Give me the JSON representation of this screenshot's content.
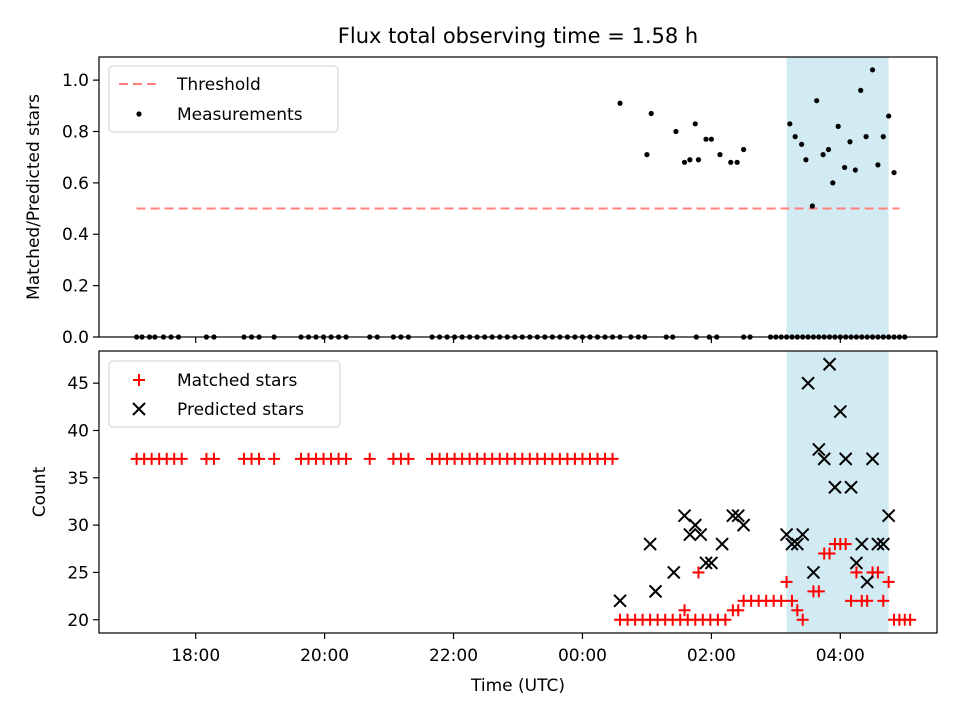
{
  "chart_data": [
    {
      "type": "scatter",
      "title": "Flux total observing time = 1.58 h",
      "ylabel": "Matched/Predicted stars",
      "xlim": [
        "16:30",
        "05:30"
      ],
      "ylim": [
        0,
        1.09
      ],
      "yticks": [
        "0.0",
        "0.2",
        "0.4",
        "0.6",
        "0.8",
        "1.0"
      ],
      "legend": {
        "placement": "top-left",
        "threshold": "Threshold",
        "measurements": "Measurements"
      },
      "colors": {
        "threshold": "#ff7f7f",
        "measurements": "#000000",
        "band": "#add8e6"
      },
      "highlight_band": [
        "03:10",
        "04:45"
      ],
      "threshold": {
        "value": 0.5,
        "x": [
          "17:05",
          "04:55"
        ]
      },
      "series": [
        {
          "points": [
            [
              "17:05",
              0
            ],
            [
              "17:10",
              0
            ],
            [
              "17:17",
              0
            ],
            [
              "17:22",
              0
            ],
            [
              "17:30",
              0
            ],
            [
              "17:37",
              0
            ],
            [
              "17:44",
              0
            ],
            [
              "18:10",
              0
            ],
            [
              "18:17",
              0
            ],
            [
              "18:45",
              0
            ],
            [
              "18:52",
              0
            ],
            [
              "18:59",
              0
            ],
            [
              "19:13",
              0
            ],
            [
              "19:38",
              0
            ],
            [
              "19:45",
              0
            ],
            [
              "19:52",
              0
            ],
            [
              "19:59",
              0
            ],
            [
              "20:06",
              0
            ],
            [
              "20:13",
              0
            ],
            [
              "20:20",
              0
            ],
            [
              "20:42",
              0
            ],
            [
              "20:49",
              0
            ],
            [
              "21:04",
              0
            ],
            [
              "21:11",
              0
            ],
            [
              "21:18",
              0
            ],
            [
              "21:40",
              0
            ],
            [
              "21:47",
              0
            ],
            [
              "21:54",
              0
            ],
            [
              "22:01",
              0
            ],
            [
              "22:08",
              0
            ],
            [
              "22:15",
              0
            ],
            [
              "22:22",
              0
            ],
            [
              "22:29",
              0
            ],
            [
              "22:36",
              0
            ],
            [
              "22:43",
              0
            ],
            [
              "22:50",
              0
            ],
            [
              "22:57",
              0
            ],
            [
              "23:04",
              0
            ],
            [
              "23:11",
              0
            ],
            [
              "23:18",
              0
            ],
            [
              "23:25",
              0
            ],
            [
              "23:32",
              0
            ],
            [
              "23:39",
              0
            ],
            [
              "23:46",
              0
            ],
            [
              "23:53",
              0
            ],
            [
              "00:00",
              0
            ],
            [
              "00:07",
              0
            ],
            [
              "00:14",
              0
            ],
            [
              "00:21",
              0
            ],
            [
              "00:28",
              0
            ],
            [
              "00:35",
              0
            ],
            [
              "00:45",
              0
            ],
            [
              "00:52",
              0
            ],
            [
              "00:58",
              0
            ],
            [
              "01:18",
              0
            ],
            [
              "01:24",
              0
            ],
            [
              "01:46",
              0
            ],
            [
              "01:58",
              0
            ],
            [
              "02:05",
              0
            ],
            [
              "02:30",
              0
            ],
            [
              "02:36",
              0
            ],
            [
              "02:55",
              0
            ],
            [
              "03:00",
              0
            ],
            [
              "03:05",
              0
            ],
            [
              "03:10",
              0
            ],
            [
              "03:15",
              0
            ],
            [
              "03:20",
              0
            ],
            [
              "03:25",
              0
            ],
            [
              "03:30",
              0
            ],
            [
              "03:35",
              0
            ],
            [
              "03:40",
              0
            ],
            [
              "03:45",
              0
            ],
            [
              "03:50",
              0
            ],
            [
              "03:55",
              0
            ],
            [
              "04:00",
              0
            ],
            [
              "04:05",
              0
            ],
            [
              "04:10",
              0
            ],
            [
              "04:15",
              0
            ],
            [
              "04:20",
              0
            ],
            [
              "04:25",
              0
            ],
            [
              "04:30",
              0
            ],
            [
              "04:35",
              0
            ],
            [
              "04:40",
              0
            ],
            [
              "04:45",
              0
            ],
            [
              "04:50",
              0
            ],
            [
              "04:55",
              0
            ],
            [
              "05:00",
              0
            ],
            [
              "00:35",
              0.91
            ],
            [
              "01:00",
              0.71
            ],
            [
              "01:04",
              0.87
            ],
            [
              "01:27",
              0.8
            ],
            [
              "01:35",
              0.68
            ],
            [
              "01:40",
              0.69
            ],
            [
              "01:45",
              0.83
            ],
            [
              "01:48",
              0.69
            ],
            [
              "01:55",
              0.77
            ],
            [
              "02:00",
              0.77
            ],
            [
              "02:08",
              0.71
            ],
            [
              "02:18",
              0.68
            ],
            [
              "02:24",
              0.68
            ],
            [
              "02:30",
              0.73
            ],
            [
              "03:13",
              0.83
            ],
            [
              "03:18",
              0.78
            ],
            [
              "03:24",
              0.75
            ],
            [
              "03:28",
              0.69
            ],
            [
              "03:34",
              0.51
            ],
            [
              "03:38",
              0.92
            ],
            [
              "03:44",
              0.71
            ],
            [
              "03:49",
              0.73
            ],
            [
              "03:53",
              0.6
            ],
            [
              "03:58",
              0.82
            ],
            [
              "04:04",
              0.66
            ],
            [
              "04:09",
              0.76
            ],
            [
              "04:14",
              0.65
            ],
            [
              "04:19",
              0.96
            ],
            [
              "04:24",
              0.78
            ],
            [
              "04:30",
              1.04
            ],
            [
              "04:35",
              0.67
            ],
            [
              "04:40",
              0.78
            ],
            [
              "04:45",
              0.86
            ],
            [
              "04:50",
              0.64
            ]
          ]
        }
      ]
    },
    {
      "type": "scatter",
      "xlabel": "Time (UTC)",
      "ylabel": "Count",
      "xlim": [
        "16:30",
        "05:30"
      ],
      "ylim": [
        18.6,
        48.4
      ],
      "xticks": [
        "18:00",
        "20:00",
        "22:00",
        "00:00",
        "02:00",
        "04:00"
      ],
      "yticks": [
        "20",
        "25",
        "30",
        "35",
        "40",
        "45"
      ],
      "legend": {
        "placement": "top-left",
        "matched": "Matched stars",
        "predicted": "Predicted stars"
      },
      "colors": {
        "matched": "#ff0000",
        "predicted": "#000000",
        "band": "#add8e6"
      },
      "highlight_band": [
        "03:10",
        "04:45"
      ],
      "matched_points": [
        [
          "17:05",
          37
        ],
        [
          "17:12",
          37
        ],
        [
          "17:19",
          37
        ],
        [
          "17:26",
          37
        ],
        [
          "17:33",
          37
        ],
        [
          "17:40",
          37
        ],
        [
          "17:47",
          37
        ],
        [
          "18:10",
          37
        ],
        [
          "18:17",
          37
        ],
        [
          "18:45",
          37
        ],
        [
          "18:52",
          37
        ],
        [
          "18:59",
          37
        ],
        [
          "19:13",
          37
        ],
        [
          "19:38",
          37
        ],
        [
          "19:45",
          37
        ],
        [
          "19:52",
          37
        ],
        [
          "19:59",
          37
        ],
        [
          "20:06",
          37
        ],
        [
          "20:13",
          37
        ],
        [
          "20:20",
          37
        ],
        [
          "20:42",
          37
        ],
        [
          "21:04",
          37
        ],
        [
          "21:11",
          37
        ],
        [
          "21:18",
          37
        ],
        [
          "21:40",
          37
        ],
        [
          "21:47",
          37
        ],
        [
          "21:54",
          37
        ],
        [
          "22:01",
          37
        ],
        [
          "22:08",
          37
        ],
        [
          "22:15",
          37
        ],
        [
          "22:22",
          37
        ],
        [
          "22:29",
          37
        ],
        [
          "22:36",
          37
        ],
        [
          "22:43",
          37
        ],
        [
          "22:50",
          37
        ],
        [
          "22:57",
          37
        ],
        [
          "23:04",
          37
        ],
        [
          "23:11",
          37
        ],
        [
          "23:18",
          37
        ],
        [
          "23:25",
          37
        ],
        [
          "23:32",
          37
        ],
        [
          "23:39",
          37
        ],
        [
          "23:46",
          37
        ],
        [
          "23:53",
          37
        ],
        [
          "00:00",
          37
        ],
        [
          "00:07",
          37
        ],
        [
          "00:14",
          37
        ],
        [
          "00:21",
          37
        ],
        [
          "00:28",
          37
        ],
        [
          "00:35",
          20
        ],
        [
          "00:42",
          20
        ],
        [
          "00:49",
          20
        ],
        [
          "00:56",
          20
        ],
        [
          "01:03",
          20
        ],
        [
          "01:10",
          20
        ],
        [
          "01:17",
          20
        ],
        [
          "01:24",
          20
        ],
        [
          "01:31",
          20
        ],
        [
          "01:35",
          21
        ],
        [
          "01:38",
          20
        ],
        [
          "01:45",
          20
        ],
        [
          "01:48",
          25
        ],
        [
          "01:52",
          20
        ],
        [
          "01:59",
          20
        ],
        [
          "02:06",
          20
        ],
        [
          "02:13",
          20
        ],
        [
          "02:20",
          21
        ],
        [
          "02:25",
          21
        ],
        [
          "02:30",
          22
        ],
        [
          "02:37",
          22
        ],
        [
          "02:44",
          22
        ],
        [
          "02:51",
          22
        ],
        [
          "02:58",
          22
        ],
        [
          "03:05",
          22
        ],
        [
          "03:10",
          24
        ],
        [
          "03:15",
          22
        ],
        [
          "03:20",
          21
        ],
        [
          "03:25",
          20
        ],
        [
          "03:35",
          23
        ],
        [
          "03:40",
          23
        ],
        [
          "03:45",
          27
        ],
        [
          "03:50",
          27
        ],
        [
          "03:55",
          28
        ],
        [
          "04:00",
          28
        ],
        [
          "04:05",
          28
        ],
        [
          "04:10",
          22
        ],
        [
          "04:15",
          25
        ],
        [
          "04:20",
          22
        ],
        [
          "04:25",
          22
        ],
        [
          "04:30",
          25
        ],
        [
          "04:35",
          25
        ],
        [
          "04:40",
          22
        ],
        [
          "04:45",
          24
        ],
        [
          "04:50",
          20
        ],
        [
          "04:55",
          20
        ],
        [
          "05:00",
          20
        ],
        [
          "05:05",
          20
        ]
      ],
      "predicted_points": [
        [
          "00:35",
          22
        ],
        [
          "01:03",
          28
        ],
        [
          "01:08",
          23
        ],
        [
          "01:25",
          25
        ],
        [
          "01:35",
          31
        ],
        [
          "01:40",
          29
        ],
        [
          "01:45",
          30
        ],
        [
          "01:50",
          29
        ],
        [
          "01:55",
          26
        ],
        [
          "02:00",
          26
        ],
        [
          "02:10",
          28
        ],
        [
          "02:20",
          31
        ],
        [
          "02:25",
          31
        ],
        [
          "02:30",
          30
        ],
        [
          "03:10",
          29
        ],
        [
          "03:15",
          28
        ],
        [
          "03:20",
          28
        ],
        [
          "03:25",
          29
        ],
        [
          "03:30",
          45
        ],
        [
          "03:35",
          25
        ],
        [
          "03:40",
          38
        ],
        [
          "03:45",
          37
        ],
        [
          "03:50",
          47
        ],
        [
          "03:55",
          34
        ],
        [
          "04:00",
          42
        ],
        [
          "04:05",
          37
        ],
        [
          "04:10",
          34
        ],
        [
          "04:15",
          26
        ],
        [
          "04:20",
          28
        ],
        [
          "04:25",
          24
        ],
        [
          "04:30",
          37
        ],
        [
          "04:35",
          28
        ],
        [
          "04:40",
          28
        ],
        [
          "04:45",
          31
        ]
      ]
    }
  ]
}
